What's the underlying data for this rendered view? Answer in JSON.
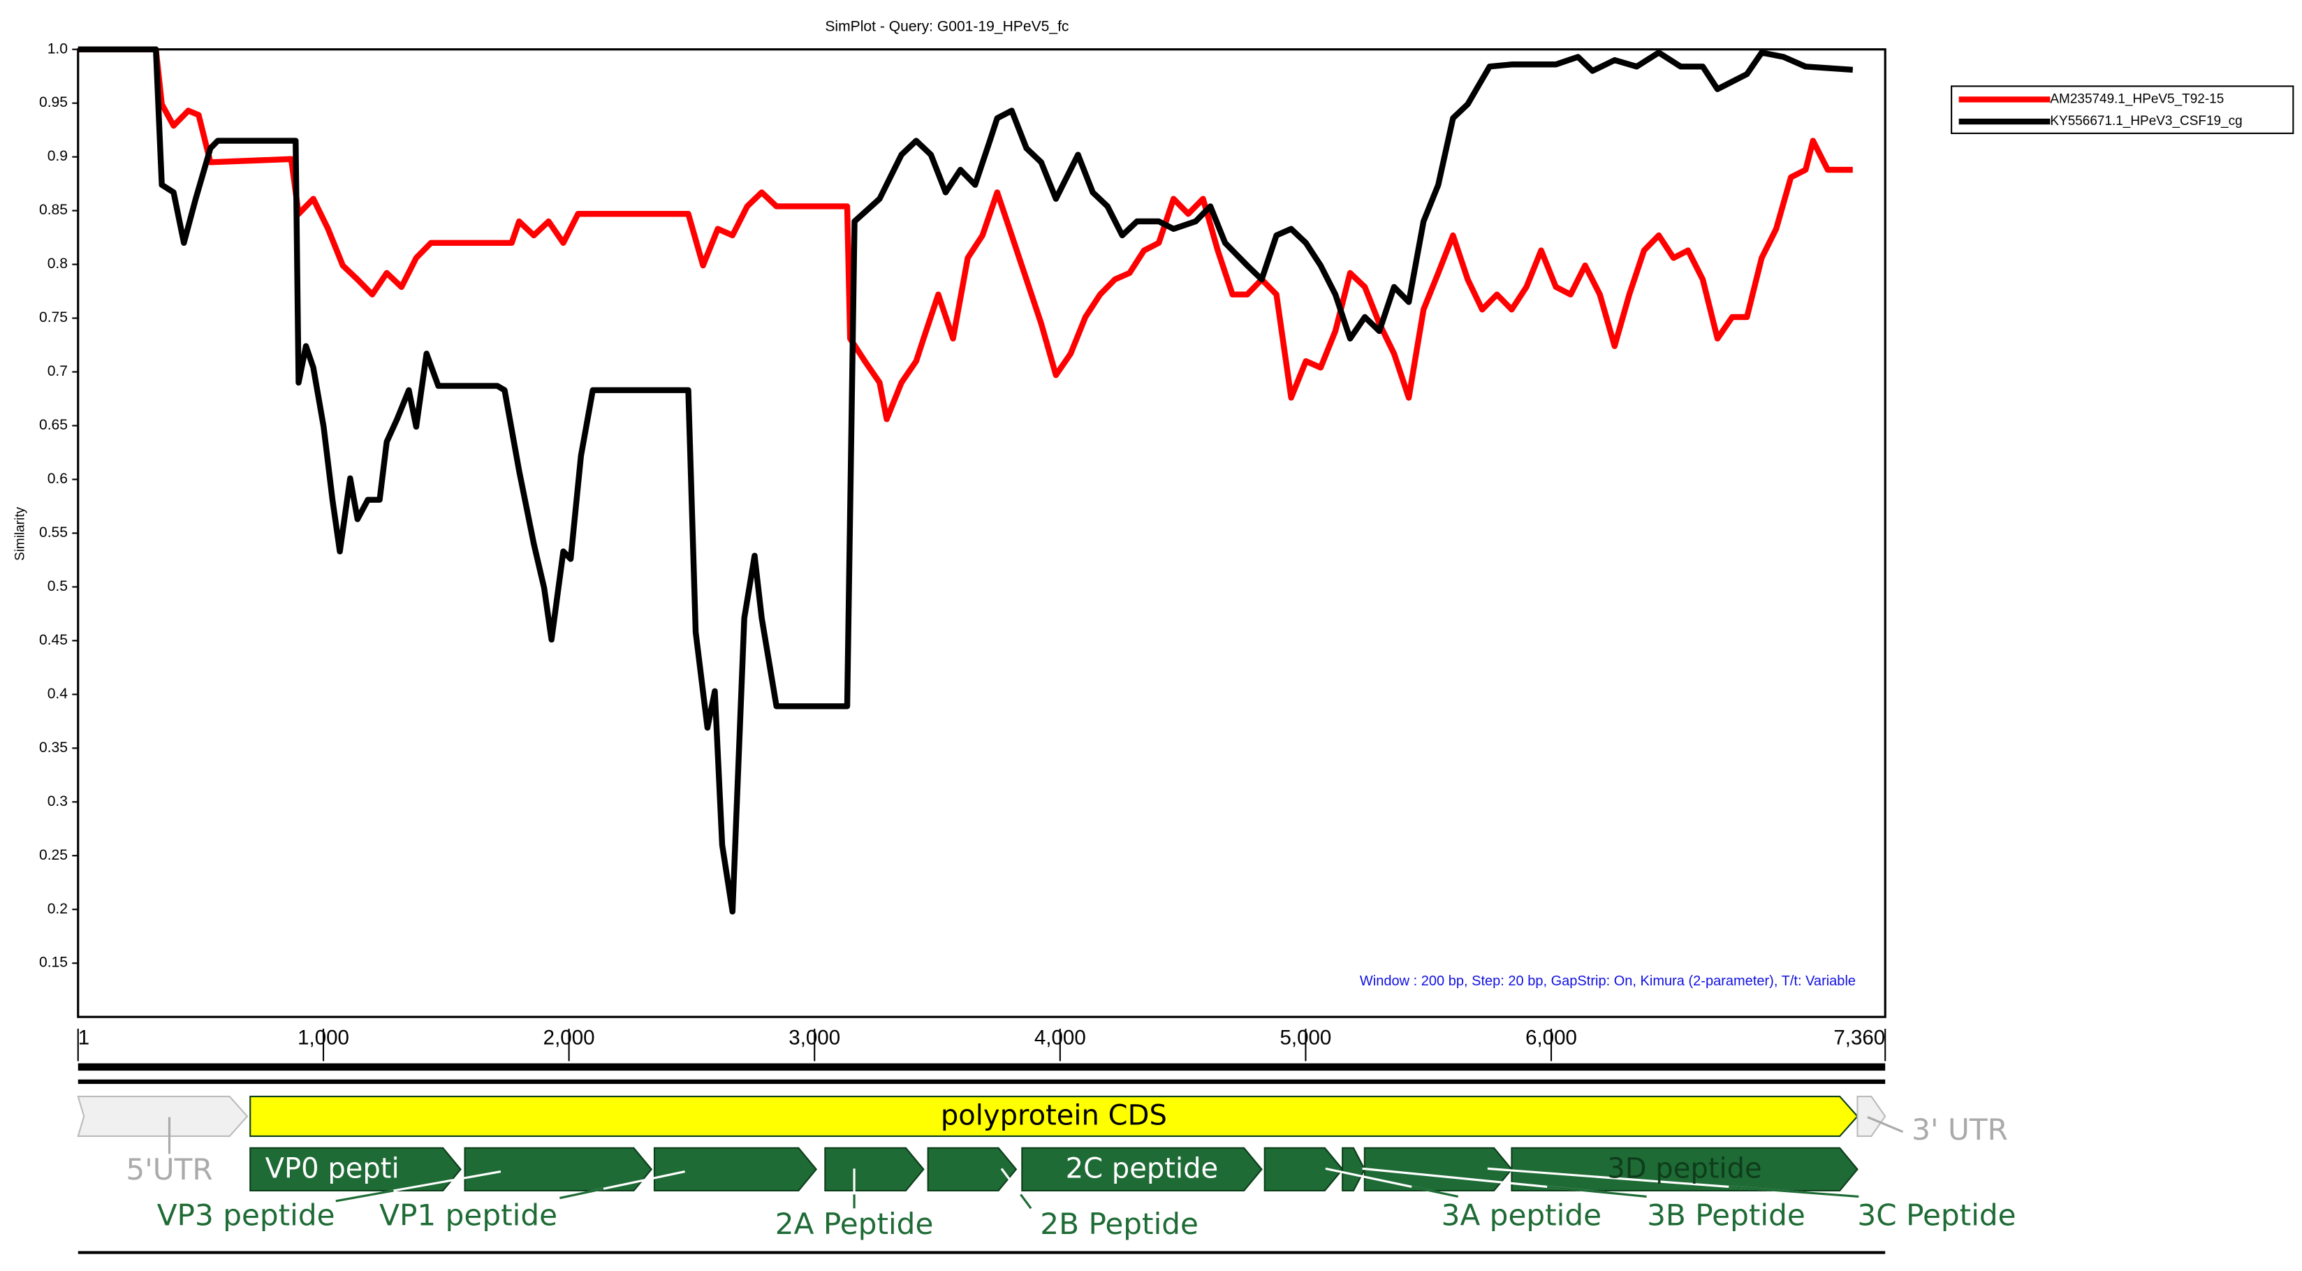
{
  "chart_data": {
    "type": "line",
    "title": "SimPlot - Query: G001-19_HPeV5_fc",
    "ylabel": "Similarity",
    "annotation": "Window : 200 bp, Step: 20 bp, GapStrip: On, Kimura (2-parameter), T/t: Variable",
    "xlim": [
      1,
      7360
    ],
    "ylim": [
      0.1,
      1.0
    ],
    "xticks": [
      {
        "value": 1,
        "label": "1"
      },
      {
        "value": 1000,
        "label": "1,000"
      },
      {
        "value": 2000,
        "label": "2,000"
      },
      {
        "value": 3000,
        "label": "3,000"
      },
      {
        "value": 4000,
        "label": "4,000"
      },
      {
        "value": 5000,
        "label": "5,000"
      },
      {
        "value": 6000,
        "label": "6,000"
      },
      {
        "value": 7360,
        "label": "7,360"
      }
    ],
    "yticks": [
      0.15,
      0.2,
      0.25,
      0.3,
      0.35,
      0.4,
      0.45,
      0.5,
      0.55,
      0.6,
      0.65,
      0.7,
      0.75,
      0.8,
      0.85,
      0.9,
      0.95,
      {
        "value": 1,
        "label": "1.0"
      }
    ],
    "grid": false,
    "legend": "top-right-outside",
    "series": [
      {
        "name": "AM235749.1_HPeV5_T92-15",
        "color": "#ff0000",
        "x": [
          1,
          318,
          342,
          390,
          450,
          492,
          540,
          869,
          899,
          959,
          1019,
          1079,
          1139,
          1199,
          1258,
          1318,
          1378,
          1438,
          1767,
          1797,
          1857,
          1917,
          1977,
          2037,
          2486,
          2546,
          2606,
          2666,
          2726,
          2785,
          2845,
          3133,
          3145,
          3205,
          3265,
          3294,
          3354,
          3414,
          3444,
          3504,
          3564,
          3624,
          3684,
          3744,
          3803,
          3863,
          3923,
          3983,
          4043,
          4103,
          4163,
          4223,
          4283,
          4342,
          4402,
          4462,
          4522,
          4582,
          4642,
          4702,
          4762,
          4821,
          4881,
          4941,
          5001,
          5061,
          5121,
          5181,
          5241,
          5300,
          5360,
          5420,
          5480,
          5540,
          5600,
          5660,
          5719,
          5779,
          5839,
          5899,
          5959,
          6019,
          6079,
          6138,
          6198,
          6258,
          6318,
          6378,
          6438,
          6498,
          6557,
          6617,
          6677,
          6737,
          6797,
          6857,
          6916,
          6976,
          7036,
          7066,
          7126,
          7228
        ],
        "values": [
          1.0,
          1.0,
          0.949,
          0.929,
          0.943,
          0.939,
          0.895,
          0.898,
          0.847,
          0.861,
          0.833,
          0.799,
          0.786,
          0.772,
          0.792,
          0.779,
          0.806,
          0.82,
          0.82,
          0.84,
          0.827,
          0.84,
          0.82,
          0.847,
          0.847,
          0.799,
          0.833,
          0.827,
          0.854,
          0.867,
          0.854,
          0.854,
          0.731,
          0.71,
          0.69,
          0.656,
          0.69,
          0.71,
          0.731,
          0.772,
          0.731,
          0.806,
          0.827,
          0.867,
          0.827,
          0.786,
          0.745,
          0.697,
          0.717,
          0.751,
          0.772,
          0.786,
          0.792,
          0.813,
          0.82,
          0.861,
          0.847,
          0.861,
          0.813,
          0.772,
          0.772,
          0.786,
          0.772,
          0.676,
          0.71,
          0.704,
          0.738,
          0.792,
          0.779,
          0.745,
          0.717,
          0.676,
          0.758,
          0.792,
          0.827,
          0.786,
          0.758,
          0.772,
          0.758,
          0.779,
          0.813,
          0.779,
          0.772,
          0.799,
          0.772,
          0.724,
          0.772,
          0.813,
          0.827,
          0.806,
          0.813,
          0.786,
          0.731,
          0.751,
          0.751,
          0.806,
          0.833,
          0.881,
          0.888,
          0.915,
          0.888,
          0.888
        ]
      },
      {
        "name": "KY556671.1_HPeV3_CSF19_cg",
        "color": "#000000",
        "x": [
          1,
          318,
          342,
          390,
          432,
          480,
          540,
          570,
          887,
          899,
          929,
          959,
          1001,
          1037,
          1067,
          1109,
          1139,
          1181,
          1229,
          1258,
          1300,
          1348,
          1378,
          1420,
          1468,
          1708,
          1738,
          1797,
          1857,
          1899,
          1929,
          1977,
          2007,
          2049,
          2097,
          2486,
          2516,
          2564,
          2594,
          2624,
          2666,
          2714,
          2756,
          2785,
          2845,
          3133,
          3163,
          3265,
          3354,
          3414,
          3474,
          3534,
          3594,
          3654,
          3714,
          3744,
          3803,
          3863,
          3923,
          3983,
          4073,
          4133,
          4193,
          4253,
          4313,
          4402,
          4462,
          4552,
          4612,
          4672,
          4762,
          4821,
          4881,
          4941,
          5001,
          5061,
          5121,
          5181,
          5241,
          5300,
          5360,
          5420,
          5480,
          5540,
          5600,
          5660,
          5749,
          5839,
          6019,
          6109,
          6168,
          6258,
          6348,
          6438,
          6527,
          6617,
          6677,
          6737,
          6797,
          6857,
          6946,
          7036,
          7228
        ],
        "values": [
          1.0,
          1.0,
          0.874,
          0.867,
          0.82,
          0.861,
          0.908,
          0.915,
          0.915,
          0.69,
          0.724,
          0.704,
          0.649,
          0.581,
          0.533,
          0.601,
          0.563,
          0.581,
          0.581,
          0.635,
          0.656,
          0.683,
          0.649,
          0.717,
          0.687,
          0.687,
          0.683,
          0.608,
          0.54,
          0.499,
          0.451,
          0.533,
          0.526,
          0.622,
          0.683,
          0.683,
          0.458,
          0.369,
          0.403,
          0.26,
          0.198,
          0.471,
          0.529,
          0.471,
          0.389,
          0.389,
          0.84,
          0.861,
          0.902,
          0.915,
          0.902,
          0.867,
          0.888,
          0.874,
          0.915,
          0.936,
          0.943,
          0.908,
          0.895,
          0.861,
          0.902,
          0.867,
          0.854,
          0.827,
          0.84,
          0.84,
          0.833,
          0.84,
          0.854,
          0.82,
          0.799,
          0.786,
          0.827,
          0.833,
          0.82,
          0.799,
          0.772,
          0.731,
          0.751,
          0.738,
          0.779,
          0.765,
          0.84,
          0.874,
          0.936,
          0.949,
          0.984,
          0.986,
          0.986,
          0.993,
          0.98,
          0.99,
          0.984,
          0.997,
          0.984,
          0.984,
          0.963,
          0.97,
          0.977,
          0.997,
          0.993,
          0.984,
          0.981
        ]
      }
    ],
    "features": [
      {
        "label": "5'UTR",
        "start": 1,
        "end": 690,
        "color": "#f0f0f0"
      },
      {
        "label": "polyprotein CDS",
        "start": 702,
        "end": 7247,
        "color": "#ffff00"
      },
      {
        "label": "3' UTR",
        "start": 7247,
        "end": 7360,
        "color": "#f0f0f0"
      },
      {
        "label": "VP0 pepti",
        "start": 702,
        "end": 1559,
        "color": "#1e6b35"
      },
      {
        "label": "VP3 peptide",
        "start": 1576,
        "end": 2336,
        "color": "#1e6b35"
      },
      {
        "label": "VP1 peptide",
        "start": 2348,
        "end": 3007,
        "color": "#1e6b35"
      },
      {
        "label": "2A Peptide",
        "start": 3043,
        "end": 3444,
        "color": "#1e6b35"
      },
      {
        "label": "2B Peptide",
        "start": 3462,
        "end": 3821,
        "color": "#1e6b35"
      },
      {
        "label": "2C peptide",
        "start": 3845,
        "end": 4821,
        "color": "#1e6b35"
      },
      {
        "label": "3A peptide",
        "start": 4833,
        "end": 5150,
        "color": "#1e6b35"
      },
      {
        "label": "3B Peptide",
        "start": 5150,
        "end": 5240,
        "color": "#1e6b35"
      },
      {
        "label": "3C Peptide",
        "start": 5240,
        "end": 5839,
        "color": "#1e6b35"
      },
      {
        "label": "3D peptide",
        "start": 5839,
        "end": 7247,
        "color": "#1e6b35"
      }
    ]
  }
}
